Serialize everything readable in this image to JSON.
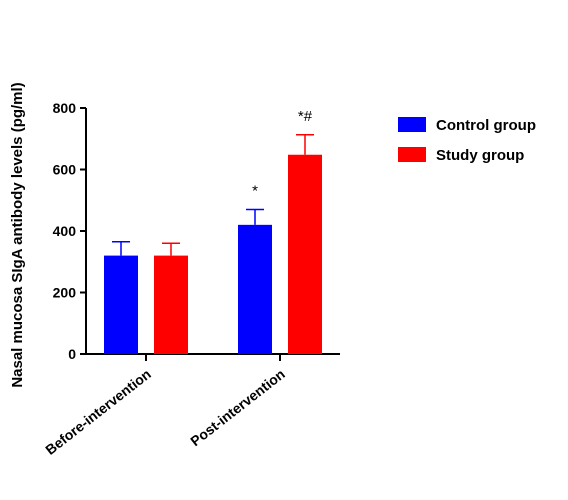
{
  "chart_data": {
    "type": "bar",
    "title": "",
    "xlabel": "",
    "ylabel": "Nasal mucosa SIgA antibody levels (pg/ml)",
    "ylim": [
      0,
      800
    ],
    "yticks": [
      0,
      200,
      400,
      600,
      800
    ],
    "categories": [
      "Before-intervention",
      "Post-intervention"
    ],
    "series": [
      {
        "name": "Control group",
        "color": "#0000ff",
        "values": [
          320,
          420
        ],
        "error": [
          45,
          50
        ],
        "annotations": [
          "",
          "*"
        ]
      },
      {
        "name": "Study group",
        "color": "#ff0000",
        "values": [
          320,
          648
        ],
        "error": [
          40,
          65
        ],
        "annotations": [
          "",
          "*#"
        ]
      }
    ],
    "legend": "right",
    "grid": false
  }
}
